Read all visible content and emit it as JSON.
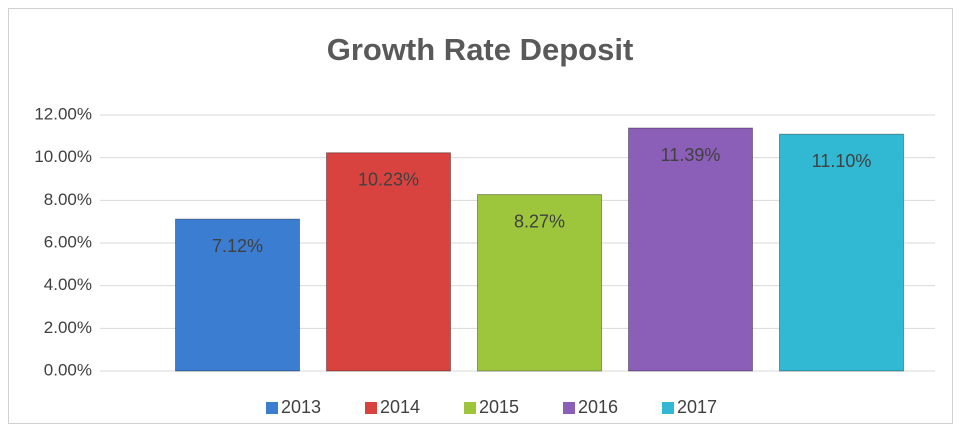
{
  "chart_data": {
    "type": "bar",
    "title": "Growth Rate Deposit",
    "categories": [
      "2013",
      "2014",
      "2015",
      "2016",
      "2017"
    ],
    "values": [
      7.12,
      10.23,
      8.27,
      11.39,
      11.1
    ],
    "value_labels": [
      "7.12%",
      "10.23%",
      "8.27%",
      "11.39%",
      "11.10%"
    ],
    "colors": [
      "#3b7dd0",
      "#d9433f",
      "#9dc63c",
      "#8b5fb8",
      "#31b8d2"
    ],
    "ylim": [
      0,
      12
    ],
    "yticks": [
      {
        "value": 0,
        "label": "0.00%"
      },
      {
        "value": 2,
        "label": "2.00%"
      },
      {
        "value": 4,
        "label": "4.00%"
      },
      {
        "value": 6,
        "label": "6.00%"
      },
      {
        "value": 8,
        "label": "8.00%"
      },
      {
        "value": 10,
        "label": "10.00%"
      },
      {
        "value": 12,
        "label": "12.00%"
      }
    ],
    "grid": true,
    "legend": "bottom"
  }
}
